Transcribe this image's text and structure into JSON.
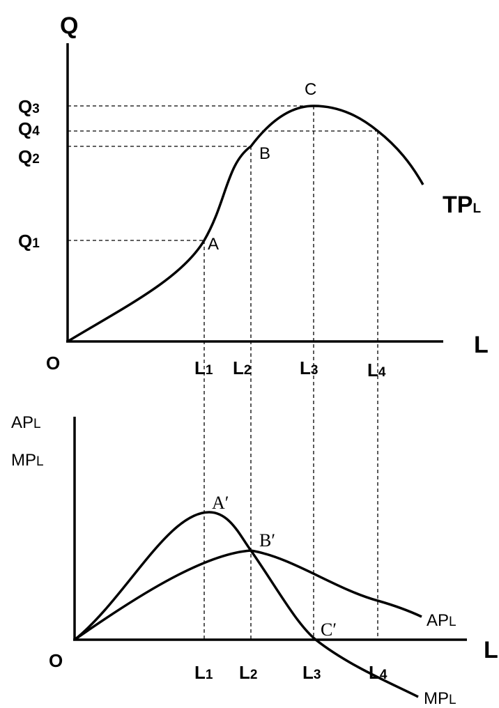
{
  "top_graph": {
    "y_axis_label": "Q",
    "x_axis_label": "L",
    "origin": "O",
    "curve_label": {
      "main": "TP",
      "sub": "L"
    },
    "q_labels": [
      {
        "main": "Q",
        "sub": "3"
      },
      {
        "main": "Q",
        "sub": "4"
      },
      {
        "main": "Q",
        "sub": "2"
      },
      {
        "main": "Q",
        "sub": "1"
      }
    ],
    "l_labels": [
      {
        "main": "L",
        "sub": "1"
      },
      {
        "main": "L",
        "sub": "2"
      },
      {
        "main": "L",
        "sub": "3"
      },
      {
        "main": "L",
        "sub": "4"
      }
    ],
    "points": [
      "A",
      "B",
      "C"
    ]
  },
  "bottom_graph": {
    "y_axis_labels": [
      {
        "main": "AP",
        "sub": "L"
      },
      {
        "main": "MP",
        "sub": "L"
      }
    ],
    "x_axis_label": "L",
    "origin": "O",
    "l_labels": [
      {
        "main": "L",
        "sub": "1"
      },
      {
        "main": "L",
        "sub": "2"
      },
      {
        "main": "L",
        "sub": "3"
      },
      {
        "main": "L",
        "sub": "4"
      }
    ],
    "points": [
      "A′",
      "B′",
      "C′"
    ],
    "curve_labels": [
      {
        "main": "AP",
        "sub": "L"
      },
      {
        "main": "MP",
        "sub": "L"
      }
    ]
  }
}
